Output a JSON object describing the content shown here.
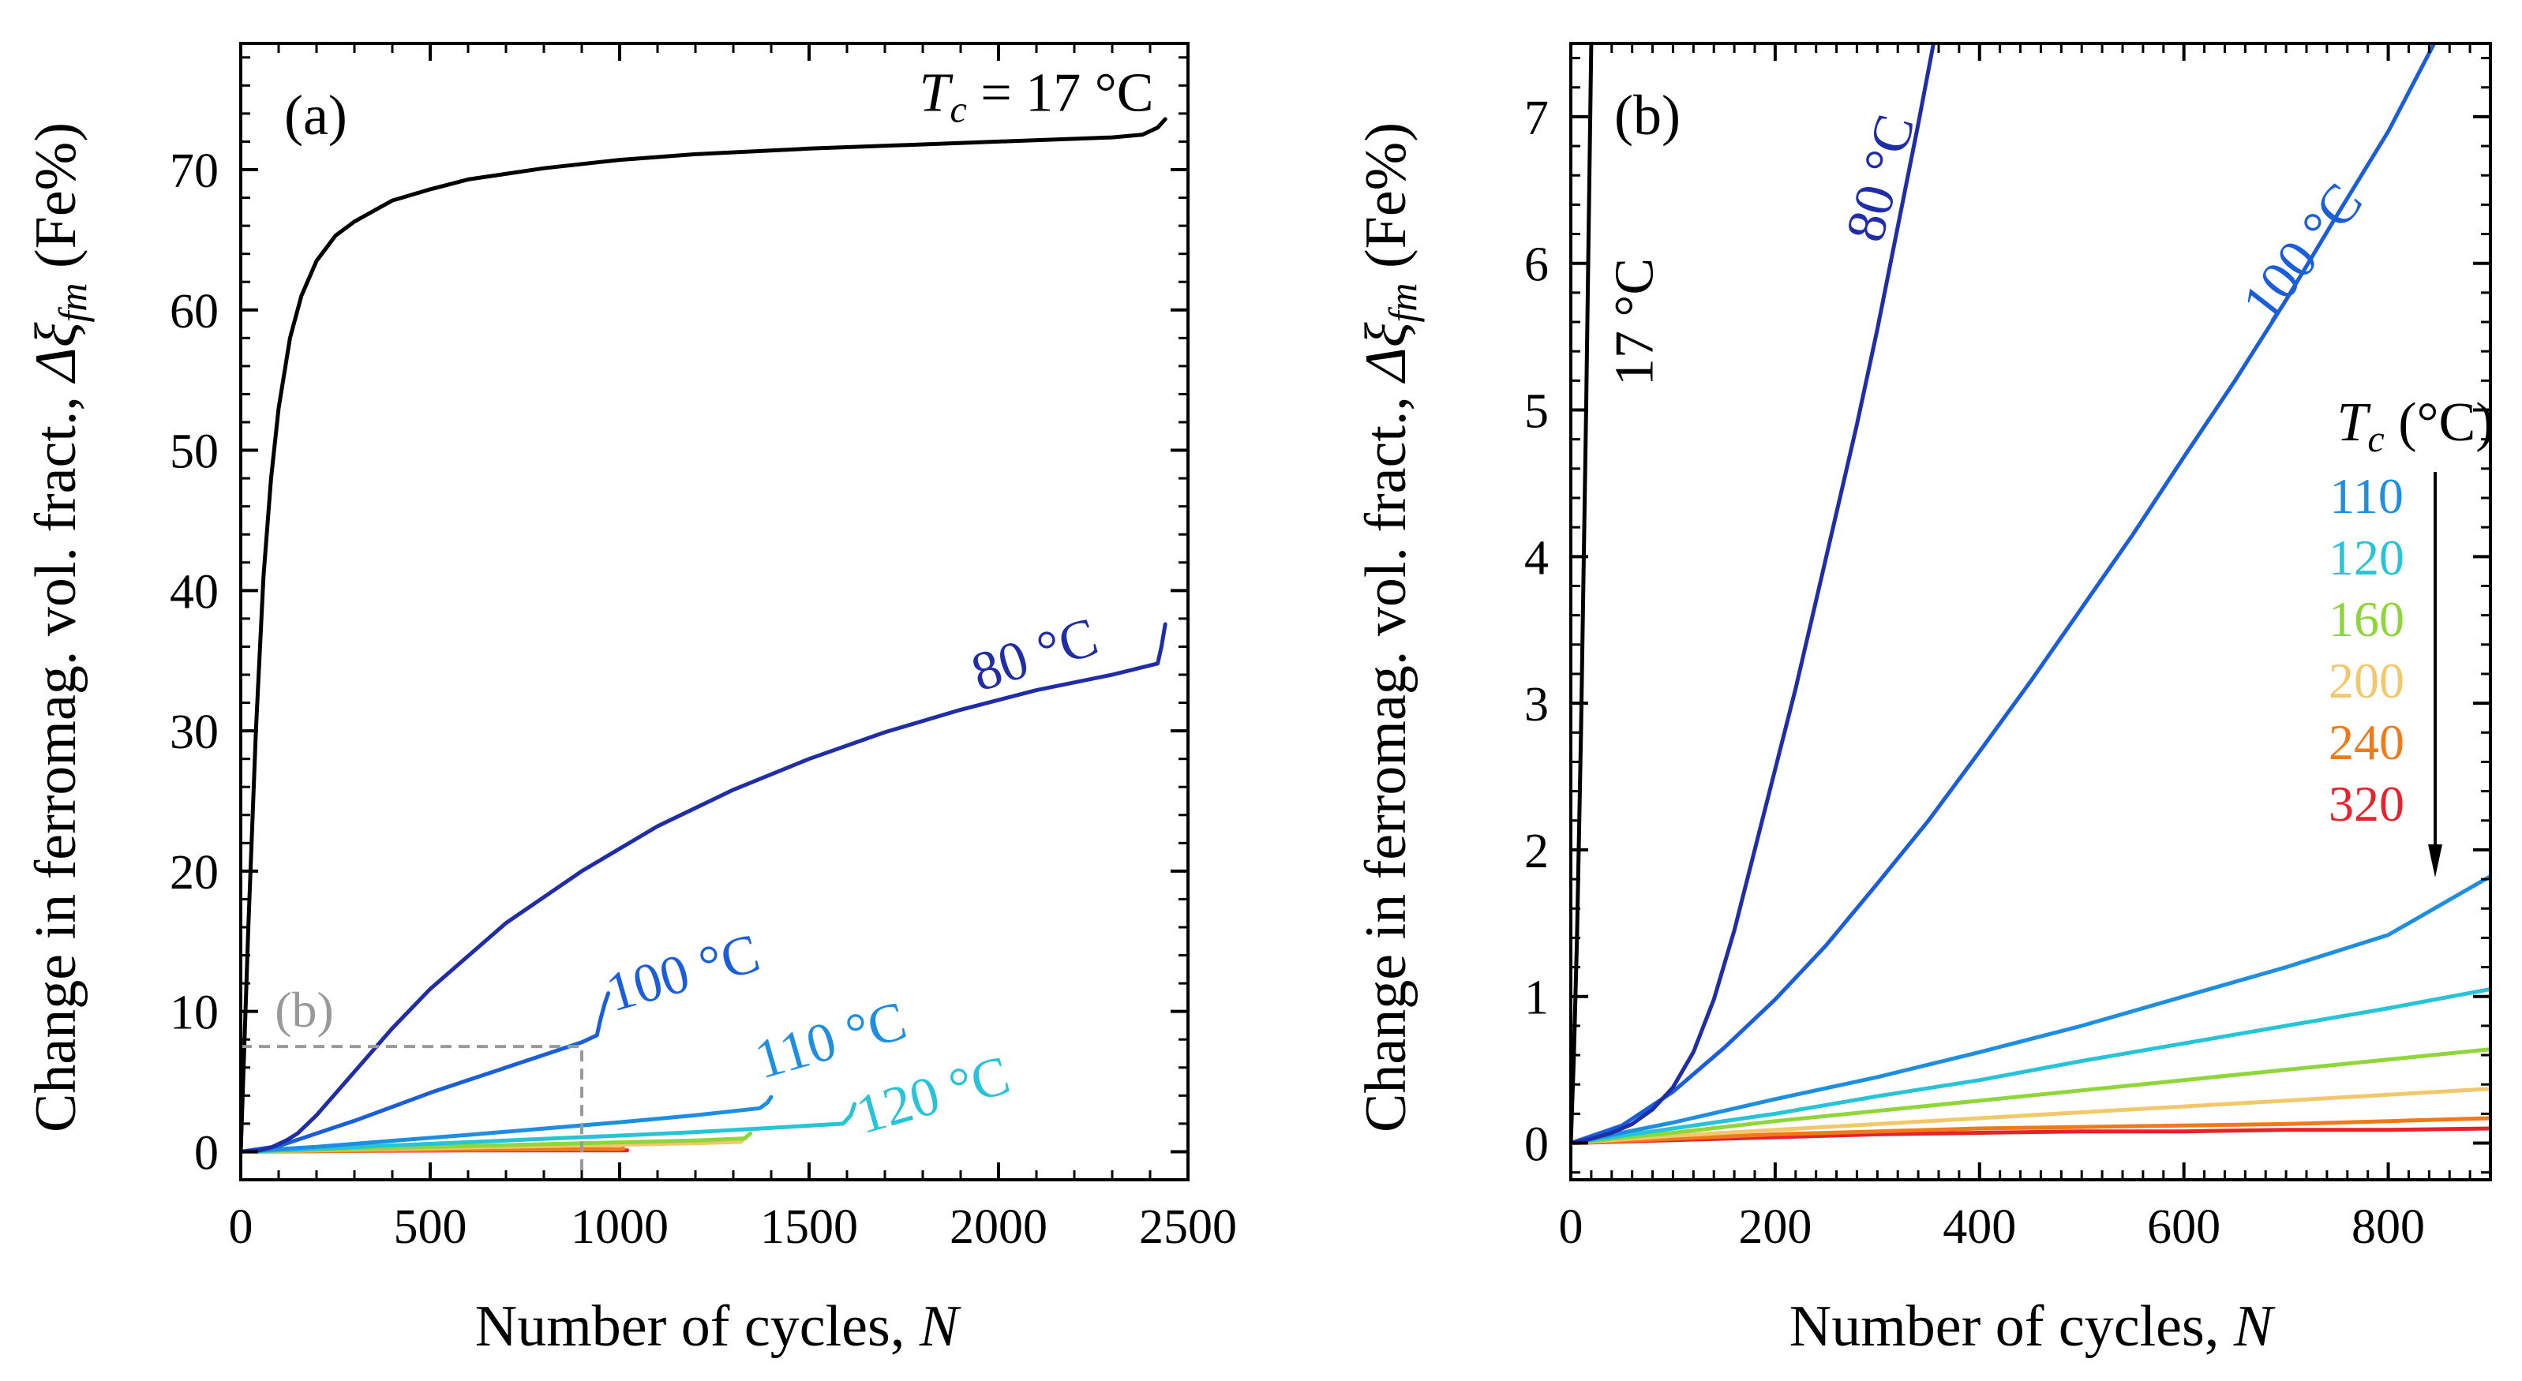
{
  "colors": {
    "T17": "#000000",
    "T80": "#1f2da6",
    "T100": "#1a5fd9",
    "T110": "#1e8ee0",
    "T120": "#27c4d8",
    "T160": "#8fd63a",
    "T200": "#f3c86a",
    "T240": "#f07a1a",
    "T320": "#e8222a",
    "guide": "#999999",
    "axis": "#000000"
  },
  "chart_data": [
    {
      "panel": "a",
      "type": "line",
      "panel_label": "(a)",
      "xlabel": "Number of cycles, N",
      "xlabel_main": "Number of cycles, ",
      "xlabel_var": "N",
      "ylabel": "Change in ferromag. vol. fract., Δξfm (Fe%)",
      "ylabel_main": "Change in ferromag. vol. fract., ",
      "ylabel_var": "Δξ",
      "ylabel_sub": "fm",
      "ylabel_unit": " (Fe%)",
      "xlim": [
        0,
        2500
      ],
      "ylim": [
        -2,
        79
      ],
      "xticks": [
        0,
        500,
        1000,
        1500,
        2000,
        2500
      ],
      "yticks": [
        0,
        10,
        20,
        30,
        40,
        50,
        60,
        70
      ],
      "xminor": 100,
      "yminor": 2,
      "guide": {
        "label": "(b)",
        "x": 900,
        "y": 7.5
      },
      "series": [
        {
          "name": "Tc = 17 °C",
          "key": "T17",
          "x": [
            0,
            10,
            20,
            40,
            60,
            80,
            100,
            130,
            160,
            200,
            250,
            300,
            400,
            500,
            600,
            800,
            1000,
            1200,
            1500,
            1800,
            2000,
            2200,
            2300,
            2380,
            2420,
            2440
          ],
          "y": [
            0,
            8,
            16,
            30,
            41,
            48,
            53,
            58,
            61,
            63.5,
            65.3,
            66.3,
            67.8,
            68.6,
            69.3,
            70.1,
            70.7,
            71.1,
            71.5,
            71.8,
            72.0,
            72.2,
            72.3,
            72.5,
            73.0,
            73.6
          ]
        },
        {
          "name": "80 °C",
          "key": "T80",
          "x": [
            0,
            50,
            80,
            120,
            150,
            200,
            300,
            400,
            500,
            700,
            900,
            1100,
            1300,
            1500,
            1700,
            1900,
            2100,
            2300,
            2420,
            2430,
            2440
          ],
          "y": [
            0,
            0.1,
            0.3,
            0.8,
            1.3,
            2.6,
            5.7,
            8.8,
            11.6,
            16.3,
            20.0,
            23.2,
            25.8,
            28.0,
            29.9,
            31.5,
            32.9,
            34.0,
            34.8,
            36.0,
            37.6
          ]
        },
        {
          "name": "100 °C",
          "key": "T100",
          "x": [
            0,
            100,
            200,
            300,
            400,
            500,
            600,
            700,
            800,
            900,
            940,
            950,
            960,
            970
          ],
          "y": [
            0,
            0.4,
            1.3,
            2.2,
            3.2,
            4.2,
            5.1,
            6.0,
            6.9,
            7.8,
            8.3,
            9.5,
            10.5,
            11.3
          ]
        },
        {
          "name": "110 °C",
          "key": "T110",
          "x": [
            0,
            200,
            400,
            600,
            800,
            1000,
            1200,
            1370,
            1390,
            1400
          ],
          "y": [
            0,
            0.35,
            0.78,
            1.2,
            1.65,
            2.1,
            2.6,
            3.1,
            3.5,
            3.9
          ]
        },
        {
          "name": "120 °C",
          "key": "T120",
          "x": [
            0,
            200,
            400,
            600,
            800,
            1000,
            1200,
            1400,
            1590,
            1610,
            1620
          ],
          "y": [
            0,
            0.2,
            0.45,
            0.68,
            0.92,
            1.15,
            1.4,
            1.7,
            2.0,
            2.6,
            3.4
          ]
        },
        {
          "name": "160 °C",
          "key": "T160",
          "x": [
            0,
            300,
            600,
            900,
            1200,
            1330,
            1345
          ],
          "y": [
            0,
            0.2,
            0.4,
            0.6,
            0.8,
            0.95,
            1.3
          ]
        },
        {
          "name": "200 °C",
          "key": "T200",
          "x": [
            0,
            300,
            600,
            900,
            1200,
            1320,
            1330
          ],
          "y": [
            0,
            0.15,
            0.3,
            0.45,
            0.6,
            0.7,
            1.0
          ]
        },
        {
          "name": "240 °C",
          "key": "T240",
          "x": [
            0,
            300,
            600,
            900,
            1000,
            1010
          ],
          "y": [
            0,
            0.07,
            0.14,
            0.18,
            0.19,
            0.22
          ]
        },
        {
          "name": "320 °C",
          "key": "T320",
          "x": [
            0,
            300,
            600,
            900,
            1010,
            1020
          ],
          "y": [
            0,
            0.06,
            0.09,
            0.1,
            0.1,
            0.1
          ]
        }
      ],
      "annotations": [
        {
          "id": "tc17",
          "prefix": "T",
          "sub": "c",
          "text": " = 17 °C",
          "color_key": "T17",
          "x": 2100,
          "y": 74.2,
          "anchor": "middle",
          "rotate": 0
        },
        {
          "id": "t80",
          "text": "80 °C",
          "color_key": "T80",
          "x": 2110,
          "y": 34.2,
          "anchor": "middle",
          "rotate": -18
        },
        {
          "id": "t100",
          "text": "100 °C",
          "color_key": "T100",
          "x": 1180,
          "y": 11.5,
          "anchor": "middle",
          "rotate": -16
        },
        {
          "id": "t110",
          "text": "110 °C",
          "color_key": "T110",
          "x": 1570,
          "y": 6.7,
          "anchor": "middle",
          "rotate": -16
        },
        {
          "id": "t120",
          "text": "120 °C",
          "color_key": "T120",
          "x": 1840,
          "y": 2.8,
          "anchor": "middle",
          "rotate": -16
        }
      ]
    },
    {
      "panel": "b",
      "type": "line",
      "panel_label": "(b)",
      "xlabel": "Number of cycles, N",
      "xlabel_main": "Number of cycles, ",
      "xlabel_var": "N",
      "ylabel": "Change in ferromag. vol. fract., Δξfm (Fe%)",
      "ylabel_main": "Change in ferromag. vol. fract., ",
      "ylabel_var": "Δξ",
      "ylabel_sub": "fm",
      "ylabel_unit": " (Fe%)",
      "xlim": [
        0,
        900
      ],
      "ylim": [
        -0.25,
        7.5
      ],
      "xticks": [
        0,
        200,
        400,
        600,
        800
      ],
      "yticks": [
        0,
        1,
        2,
        3,
        4,
        5,
        6,
        7
      ],
      "xminor": 20,
      "yminor": 0.2,
      "legend": {
        "title_prefix": "T",
        "title_sub": "c",
        "title_rest": " (°C)",
        "items": [
          {
            "label": "110",
            "key": "T110"
          },
          {
            "label": "120",
            "key": "T120"
          },
          {
            "label": "160",
            "key": "T160"
          },
          {
            "label": "200",
            "key": "T200"
          },
          {
            "label": "240",
            "key": "T240"
          },
          {
            "label": "320",
            "key": "T320"
          }
        ]
      },
      "series": [
        {
          "name": "17 °C",
          "key": "T17",
          "x": [
            0,
            3,
            6,
            10,
            15,
            20
          ],
          "y": [
            0,
            0.6,
            1.4,
            2.8,
            5.0,
            7.5
          ]
        },
        {
          "name": "80 °C",
          "key": "T80",
          "x": [
            0,
            20,
            40,
            60,
            80,
            100,
            120,
            140,
            160,
            180,
            200,
            220,
            240,
            260,
            280,
            300,
            320,
            340,
            355
          ],
          "y": [
            0,
            0.03,
            0.07,
            0.13,
            0.23,
            0.38,
            0.62,
            0.98,
            1.45,
            2.0,
            2.55,
            3.1,
            3.7,
            4.3,
            4.9,
            5.55,
            6.25,
            6.95,
            7.5
          ]
        },
        {
          "name": "100 °C",
          "key": "T100",
          "x": [
            0,
            50,
            100,
            150,
            200,
            250,
            300,
            350,
            400,
            450,
            500,
            550,
            600,
            650,
            700,
            750,
            800,
            845
          ],
          "y": [
            0,
            0.12,
            0.35,
            0.65,
            0.98,
            1.35,
            1.77,
            2.2,
            2.67,
            3.15,
            3.65,
            4.15,
            4.68,
            5.2,
            5.75,
            6.33,
            6.9,
            7.5
          ]
        },
        {
          "name": "110 °C",
          "key": "T110",
          "x": [
            0,
            100,
            200,
            300,
            400,
            500,
            600,
            700,
            800,
            900
          ],
          "y": [
            0,
            0.14,
            0.3,
            0.45,
            0.62,
            0.8,
            1.0,
            1.2,
            1.42,
            1.82
          ]
        },
        {
          "name": "120 °C",
          "key": "T120",
          "x": [
            0,
            100,
            200,
            300,
            400,
            500,
            600,
            700,
            800,
            900
          ],
          "y": [
            0,
            0.1,
            0.2,
            0.32,
            0.43,
            0.56,
            0.68,
            0.8,
            0.92,
            1.05
          ]
        },
        {
          "name": "160 °C",
          "key": "T160",
          "x": [
            0,
            100,
            200,
            300,
            400,
            500,
            600,
            700,
            800,
            900
          ],
          "y": [
            0,
            0.07,
            0.15,
            0.22,
            0.29,
            0.36,
            0.43,
            0.5,
            0.57,
            0.64
          ]
        },
        {
          "name": "200 °C",
          "key": "T200",
          "x": [
            0,
            100,
            200,
            300,
            400,
            500,
            600,
            700,
            800,
            900
          ],
          "y": [
            0,
            0.05,
            0.09,
            0.13,
            0.17,
            0.21,
            0.25,
            0.29,
            0.33,
            0.37
          ]
        },
        {
          "name": "240 °C",
          "key": "T240",
          "x": [
            0,
            100,
            200,
            300,
            400,
            500,
            600,
            700,
            800,
            900
          ],
          "y": [
            0,
            0.03,
            0.06,
            0.08,
            0.1,
            0.11,
            0.12,
            0.13,
            0.15,
            0.17
          ]
        },
        {
          "name": "320 °C",
          "key": "T320",
          "x": [
            0,
            100,
            200,
            300,
            400,
            500,
            600,
            700,
            800,
            900
          ],
          "y": [
            0,
            0.02,
            0.04,
            0.06,
            0.07,
            0.08,
            0.08,
            0.09,
            0.09,
            0.1
          ]
        }
      ],
      "annotations": [
        {
          "id": "b17",
          "text": "17 °C",
          "color_key": "T17",
          "x": 80,
          "y": 5.6,
          "anchor": "middle",
          "rotate": -90
        },
        {
          "id": "b80",
          "text": "80 °C",
          "color_key": "T80",
          "x": 320,
          "y": 6.55,
          "anchor": "middle",
          "rotate": -75
        },
        {
          "id": "b100",
          "text": "100 °C",
          "color_key": "T100",
          "x": 730,
          "y": 6.0,
          "anchor": "middle",
          "rotate": -52
        }
      ]
    }
  ]
}
